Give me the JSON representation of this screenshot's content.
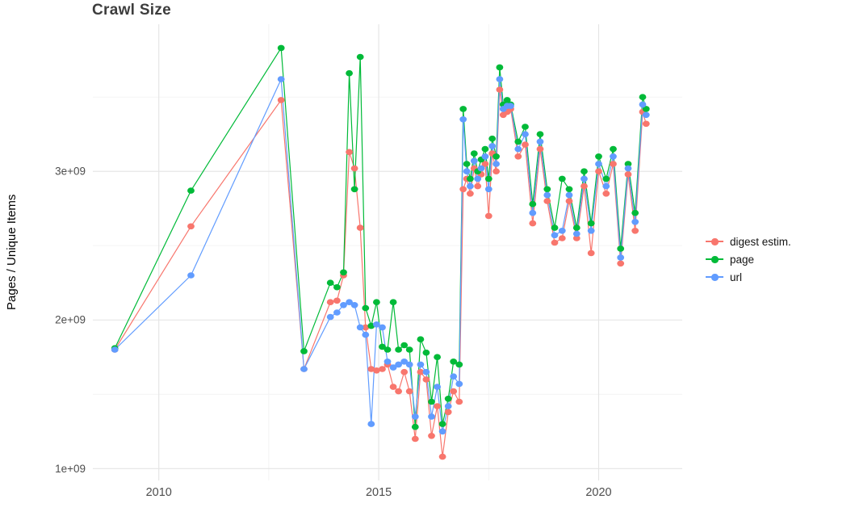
{
  "chart_data": {
    "type": "line",
    "title": "Crawl Size",
    "xlabel": "",
    "ylabel": "Pages / Unique Items",
    "y_unit_multiplier": 1000000000,
    "values_unit": "billions",
    "xlim": [
      2008.5,
      2021.9
    ],
    "ylim_billions": [
      0.92,
      3.99
    ],
    "grid": true,
    "legend_position": "right",
    "panel_background": "#ffffff",
    "grid_color_major": "#e4e4e4",
    "grid_color_minor": "#f2f2f2",
    "tick_label_color": "#4d4d4d",
    "x_ticks": [
      {
        "value": 2010,
        "label": "2010"
      },
      {
        "value": 2015,
        "label": "2015"
      },
      {
        "value": 2020,
        "label": "2020"
      }
    ],
    "y_ticks": [
      {
        "value": 1,
        "label": "1e+09"
      },
      {
        "value": 2,
        "label": "2e+09"
      },
      {
        "value": 3,
        "label": "3e+09"
      }
    ],
    "x_minor": [
      2012.5,
      2017.5
    ],
    "y_minor": [
      1.5,
      2.5,
      3.5
    ],
    "x": [
      2009.0,
      2010.73,
      2012.78,
      2013.3,
      2013.9,
      2014.05,
      2014.2,
      2014.33,
      2014.45,
      2014.58,
      2014.7,
      2014.83,
      2014.95,
      2015.08,
      2015.2,
      2015.33,
      2015.45,
      2015.58,
      2015.7,
      2015.83,
      2015.95,
      2016.08,
      2016.2,
      2016.33,
      2016.45,
      2016.58,
      2016.7,
      2016.83,
      2016.92,
      2017.0,
      2017.08,
      2017.17,
      2017.25,
      2017.33,
      2017.42,
      2017.5,
      2017.58,
      2017.67,
      2017.75,
      2017.83,
      2017.92,
      2018.0,
      2018.17,
      2018.33,
      2018.5,
      2018.67,
      2018.83,
      2019.0,
      2019.17,
      2019.33,
      2019.5,
      2019.67,
      2019.83,
      2020.0,
      2020.17,
      2020.33,
      2020.5,
      2020.67,
      2020.83,
      2021.0,
      2021.08
    ],
    "series": [
      {
        "name": "digest estim.",
        "color": "#F8766D",
        "values": [
          1.8,
          2.63,
          3.48,
          1.67,
          2.12,
          2.13,
          2.3,
          3.13,
          3.02,
          2.62,
          1.95,
          1.67,
          1.66,
          1.67,
          1.7,
          1.55,
          1.52,
          1.65,
          1.52,
          1.2,
          1.65,
          1.6,
          1.22,
          1.42,
          1.08,
          1.38,
          1.52,
          1.45,
          2.88,
          2.95,
          2.85,
          3.02,
          2.9,
          2.98,
          3.05,
          2.7,
          3.12,
          3.0,
          3.55,
          3.38,
          3.4,
          3.42,
          3.1,
          3.18,
          2.65,
          3.15,
          2.8,
          2.52,
          2.55,
          2.8,
          2.55,
          2.9,
          2.45,
          3.0,
          2.85,
          3.05,
          2.38,
          2.98,
          2.6,
          3.4,
          3.32
        ]
      },
      {
        "name": "page",
        "color": "#00BA38",
        "values": [
          1.81,
          2.87,
          3.83,
          1.79,
          2.25,
          2.22,
          2.32,
          3.66,
          2.88,
          3.77,
          2.08,
          1.96,
          2.12,
          1.82,
          1.8,
          2.12,
          1.8,
          1.83,
          1.8,
          1.28,
          1.87,
          1.78,
          1.45,
          1.75,
          1.3,
          1.47,
          1.72,
          1.7,
          3.42,
          3.05,
          2.95,
          3.12,
          3.0,
          3.08,
          3.15,
          2.95,
          3.22,
          3.1,
          3.7,
          3.45,
          3.48,
          3.45,
          3.2,
          3.3,
          2.78,
          3.25,
          2.88,
          2.62,
          2.95,
          2.88,
          2.62,
          3.0,
          2.65,
          3.1,
          2.95,
          3.15,
          2.48,
          3.05,
          2.72,
          3.5,
          3.42
        ]
      },
      {
        "name": "url",
        "color": "#619CFF",
        "values": [
          1.8,
          2.3,
          3.62,
          1.67,
          2.02,
          2.05,
          2.1,
          2.12,
          2.1,
          1.95,
          1.9,
          1.3,
          1.97,
          1.95,
          1.72,
          1.68,
          1.7,
          1.72,
          1.7,
          1.35,
          1.7,
          1.65,
          1.35,
          1.55,
          1.25,
          1.42,
          1.62,
          1.57,
          3.35,
          3.0,
          2.9,
          3.07,
          2.95,
          3.02,
          3.1,
          2.88,
          3.17,
          3.05,
          3.62,
          3.42,
          3.44,
          3.44,
          3.15,
          3.25,
          2.72,
          3.2,
          2.84,
          2.57,
          2.6,
          2.84,
          2.58,
          2.95,
          2.6,
          3.05,
          2.9,
          3.1,
          2.42,
          3.02,
          2.66,
          3.45,
          3.38
        ]
      }
    ]
  }
}
